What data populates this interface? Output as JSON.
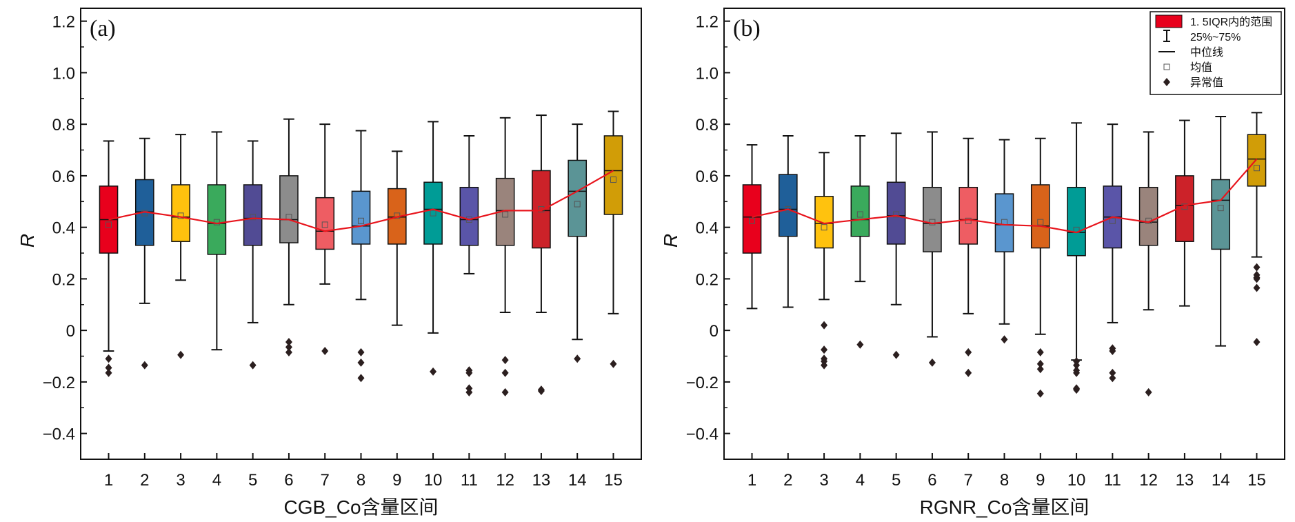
{
  "chart_data": [
    {
      "type": "box",
      "panel_label": "(a)",
      "xlabel": "CGB_Co含量区间",
      "ylabel": "R",
      "ylim": [
        -0.5,
        1.25
      ],
      "yticks": [
        -0.4,
        -0.2,
        0,
        0.2,
        0.4,
        0.6,
        0.8,
        1.0,
        1.2
      ],
      "ytick_labels": [
        "−0.4",
        "−0.2",
        "0",
        "0.2",
        "0.4",
        "0.6",
        "0.8",
        "1.0",
        "1.2"
      ],
      "categories": [
        "1",
        "2",
        "3",
        "4",
        "5",
        "6",
        "7",
        "8",
        "9",
        "10",
        "11",
        "12",
        "13",
        "14",
        "15"
      ],
      "colors": [
        "#e8001c",
        "#1f5f99",
        "#ffc20e",
        "#3aaa5c",
        "#514b94",
        "#8c8c8c",
        "#ee5d63",
        "#5a96cf",
        "#d9631a",
        "#009c96",
        "#5a55a8",
        "#9a847c",
        "#cc2229",
        "#5b9496",
        "#d19d07"
      ],
      "boxes": [
        {
          "whisker_low": -0.08,
          "q1": 0.3,
          "median": 0.43,
          "q3": 0.56,
          "whisker_high": 0.735,
          "mean": 0.41,
          "outliers": [
            -0.11,
            -0.145,
            -0.165
          ]
        },
        {
          "whisker_low": 0.105,
          "q1": 0.33,
          "median": 0.46,
          "q3": 0.585,
          "whisker_high": 0.745,
          "mean": 0.455,
          "outliers": [
            -0.135
          ]
        },
        {
          "whisker_low": 0.195,
          "q1": 0.345,
          "median": 0.44,
          "q3": 0.565,
          "whisker_high": 0.76,
          "mean": 0.445,
          "outliers": [
            -0.095
          ]
        },
        {
          "whisker_low": -0.075,
          "q1": 0.295,
          "median": 0.415,
          "q3": 0.565,
          "whisker_high": 0.77,
          "mean": 0.42,
          "outliers": []
        },
        {
          "whisker_low": 0.03,
          "q1": 0.33,
          "median": 0.435,
          "q3": 0.565,
          "whisker_high": 0.735,
          "mean": 0.44,
          "outliers": [
            -0.135
          ]
        },
        {
          "whisker_low": 0.1,
          "q1": 0.34,
          "median": 0.43,
          "q3": 0.6,
          "whisker_high": 0.82,
          "mean": 0.44,
          "outliers": [
            -0.045,
            -0.065,
            -0.085
          ]
        },
        {
          "whisker_low": 0.18,
          "q1": 0.315,
          "median": 0.385,
          "q3": 0.515,
          "whisker_high": 0.8,
          "mean": 0.41,
          "outliers": [
            -0.08
          ]
        },
        {
          "whisker_low": 0.12,
          "q1": 0.335,
          "median": 0.405,
          "q3": 0.54,
          "whisker_high": 0.775,
          "mean": 0.425,
          "outliers": [
            -0.085,
            -0.125,
            -0.185
          ]
        },
        {
          "whisker_low": 0.02,
          "q1": 0.335,
          "median": 0.44,
          "q3": 0.55,
          "whisker_high": 0.695,
          "mean": 0.445,
          "outliers": []
        },
        {
          "whisker_low": -0.01,
          "q1": 0.335,
          "median": 0.47,
          "q3": 0.575,
          "whisker_high": 0.81,
          "mean": 0.455,
          "outliers": [
            -0.16
          ]
        },
        {
          "whisker_low": 0.22,
          "q1": 0.33,
          "median": 0.43,
          "q3": 0.555,
          "whisker_high": 0.755,
          "mean": 0.43,
          "outliers": [
            -0.155,
            -0.165,
            -0.225,
            -0.24
          ]
        },
        {
          "whisker_low": 0.07,
          "q1": 0.33,
          "median": 0.465,
          "q3": 0.59,
          "whisker_high": 0.825,
          "mean": 0.45,
          "outliers": [
            -0.115,
            -0.165,
            -0.24
          ]
        },
        {
          "whisker_low": 0.07,
          "q1": 0.32,
          "median": 0.465,
          "q3": 0.62,
          "whisker_high": 0.835,
          "mean": 0.47,
          "outliers": [
            -0.23,
            -0.235
          ]
        },
        {
          "whisker_low": -0.035,
          "q1": 0.365,
          "median": 0.54,
          "q3": 0.66,
          "whisker_high": 0.8,
          "mean": 0.49,
          "outliers": [
            -0.11
          ]
        },
        {
          "whisker_low": 0.065,
          "q1": 0.45,
          "median": 0.62,
          "q3": 0.755,
          "whisker_high": 0.85,
          "mean": 0.585,
          "outliers": [
            -0.13
          ]
        }
      ],
      "median_line_color": "#e8141c"
    },
    {
      "type": "box",
      "panel_label": "(b)",
      "xlabel": "RGNR_Co含量区间",
      "ylabel": "R",
      "ylim": [
        -0.5,
        1.25
      ],
      "yticks": [
        -0.4,
        -0.2,
        0,
        0.2,
        0.4,
        0.6,
        0.8,
        1.0,
        1.2
      ],
      "ytick_labels": [
        "−0.4",
        "−0.2",
        "0",
        "0.2",
        "0.4",
        "0.6",
        "0.8",
        "1.0",
        "1.2"
      ],
      "categories": [
        "1",
        "2",
        "3",
        "4",
        "5",
        "6",
        "7",
        "8",
        "9",
        "10",
        "11",
        "12",
        "13",
        "14",
        "15"
      ],
      "colors": [
        "#e8001c",
        "#1f5f99",
        "#ffc20e",
        "#3aaa5c",
        "#514b94",
        "#8c8c8c",
        "#ee5d63",
        "#5a96cf",
        "#d9631a",
        "#009c96",
        "#5a55a8",
        "#9a847c",
        "#cc2229",
        "#5b9496",
        "#d19d07"
      ],
      "boxes": [
        {
          "whisker_low": 0.085,
          "q1": 0.3,
          "median": 0.44,
          "q3": 0.565,
          "whisker_high": 0.72,
          "mean": 0.425,
          "outliers": []
        },
        {
          "whisker_low": 0.09,
          "q1": 0.365,
          "median": 0.47,
          "q3": 0.605,
          "whisker_high": 0.755,
          "mean": 0.47,
          "outliers": []
        },
        {
          "whisker_low": 0.12,
          "q1": 0.32,
          "median": 0.415,
          "q3": 0.52,
          "whisker_high": 0.69,
          "mean": 0.4,
          "outliers": [
            0.02,
            -0.075,
            -0.11,
            -0.12,
            -0.135
          ]
        },
        {
          "whisker_low": 0.19,
          "q1": 0.365,
          "median": 0.43,
          "q3": 0.56,
          "whisker_high": 0.755,
          "mean": 0.45,
          "outliers": [
            -0.055
          ]
        },
        {
          "whisker_low": 0.1,
          "q1": 0.335,
          "median": 0.445,
          "q3": 0.575,
          "whisker_high": 0.765,
          "mean": 0.45,
          "outliers": [
            -0.095
          ]
        },
        {
          "whisker_low": -0.025,
          "q1": 0.305,
          "median": 0.415,
          "q3": 0.555,
          "whisker_high": 0.77,
          "mean": 0.42,
          "outliers": [
            -0.125
          ]
        },
        {
          "whisker_low": 0.065,
          "q1": 0.335,
          "median": 0.43,
          "q3": 0.555,
          "whisker_high": 0.745,
          "mean": 0.425,
          "outliers": [
            -0.085,
            -0.165
          ]
        },
        {
          "whisker_low": 0.025,
          "q1": 0.305,
          "median": 0.41,
          "q3": 0.53,
          "whisker_high": 0.74,
          "mean": 0.42,
          "outliers": [
            -0.035
          ]
        },
        {
          "whisker_low": -0.015,
          "q1": 0.32,
          "median": 0.405,
          "q3": 0.565,
          "whisker_high": 0.745,
          "mean": 0.42,
          "outliers": [
            -0.085,
            -0.13,
            -0.15,
            -0.245
          ]
        },
        {
          "whisker_low": -0.115,
          "q1": 0.29,
          "median": 0.38,
          "q3": 0.555,
          "whisker_high": 0.805,
          "mean": 0.39,
          "outliers": [
            -0.12,
            -0.135,
            -0.155,
            -0.165,
            -0.225,
            -0.23
          ]
        },
        {
          "whisker_low": 0.03,
          "q1": 0.32,
          "median": 0.44,
          "q3": 0.56,
          "whisker_high": 0.8,
          "mean": 0.425,
          "outliers": [
            -0.07,
            -0.08,
            -0.165,
            -0.185
          ]
        },
        {
          "whisker_low": 0.08,
          "q1": 0.33,
          "median": 0.42,
          "q3": 0.555,
          "whisker_high": 0.77,
          "mean": 0.425,
          "outliers": [
            -0.24
          ]
        },
        {
          "whisker_low": 0.095,
          "q1": 0.345,
          "median": 0.485,
          "q3": 0.6,
          "whisker_high": 0.815,
          "mean": 0.48,
          "outliers": []
        },
        {
          "whisker_low": -0.06,
          "q1": 0.315,
          "median": 0.505,
          "q3": 0.585,
          "whisker_high": 0.83,
          "mean": 0.475,
          "outliers": []
        },
        {
          "whisker_low": 0.285,
          "q1": 0.56,
          "median": 0.665,
          "q3": 0.76,
          "whisker_high": 0.845,
          "mean": 0.63,
          "outliers": [
            0.245,
            0.215,
            0.205,
            0.2,
            0.165,
            -0.045
          ]
        }
      ],
      "median_line_color": "#e8141c"
    }
  ],
  "legend": {
    "items": [
      {
        "symbol": "box",
        "label": "1. 5IQR内的范围",
        "color": "#e8001c"
      },
      {
        "symbol": "whisker",
        "label": "25%~75%"
      },
      {
        "symbol": "line",
        "label": "中位线"
      },
      {
        "symbol": "square",
        "label": "均值"
      },
      {
        "symbol": "diamond",
        "label": "异常值"
      }
    ]
  }
}
